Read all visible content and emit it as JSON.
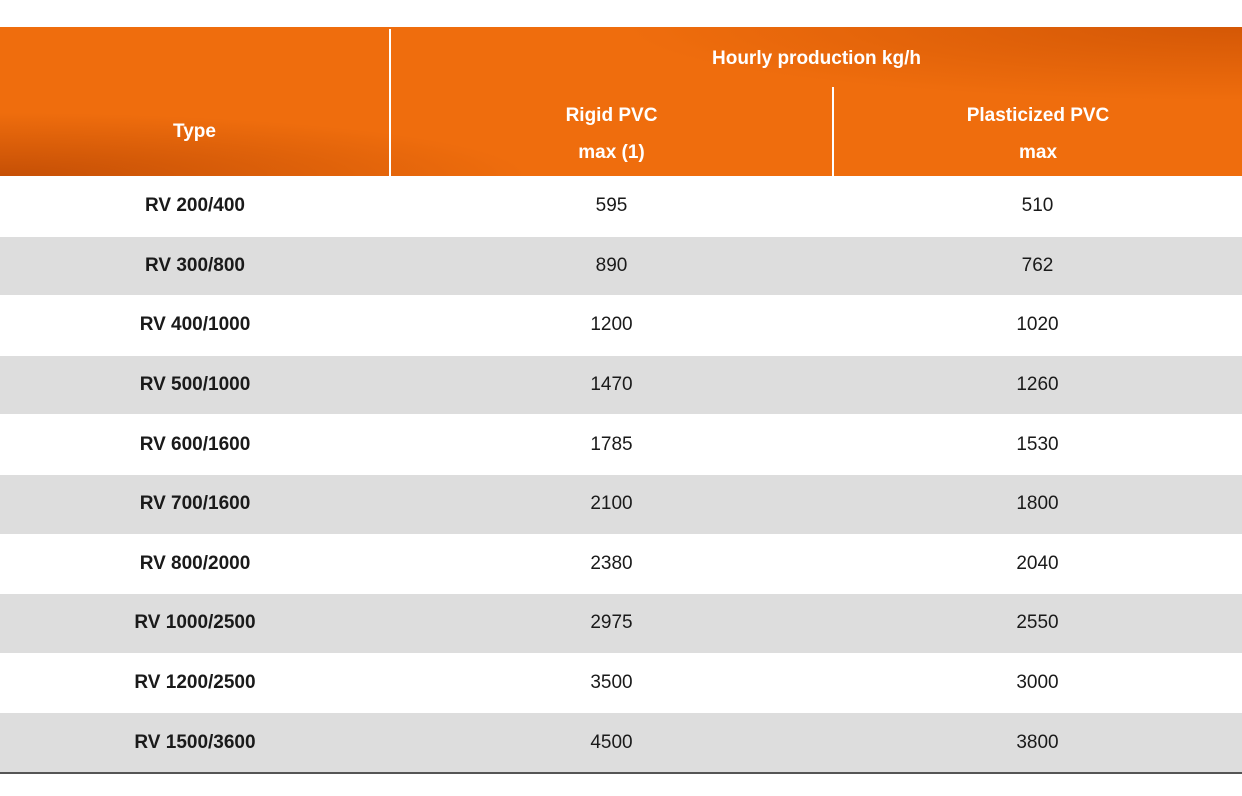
{
  "header": {
    "type_label": "Type",
    "group_label": "Hourly production kg/h",
    "col2_line1": "Rigid PVC",
    "col2_line2": "max (1)",
    "col3_line1": "Plasticized PVC",
    "col3_line2": "max"
  },
  "rows": [
    {
      "type": "RV 200/400",
      "rigid": "595",
      "plasticized": "510"
    },
    {
      "type": "RV 300/800",
      "rigid": "890",
      "plasticized": "762"
    },
    {
      "type": "RV 400/1000",
      "rigid": "1200",
      "plasticized": "1020"
    },
    {
      "type": "RV 500/1000",
      "rigid": "1470",
      "plasticized": "1260"
    },
    {
      "type": "RV 600/1600",
      "rigid": "1785",
      "plasticized": "1530"
    },
    {
      "type": "RV 700/1600",
      "rigid": "2100",
      "plasticized": "1800"
    },
    {
      "type": "RV 800/2000",
      "rigid": "2380",
      "plasticized": "2040"
    },
    {
      "type": "RV 1000/2500",
      "rigid": "2975",
      "plasticized": "2550"
    },
    {
      "type": "RV 1200/2500",
      "rigid": "3500",
      "plasticized": "3000"
    },
    {
      "type": "RV 1500/3600",
      "rigid": "4500",
      "plasticized": "3800"
    }
  ],
  "colors": {
    "header_orange": "#ef6d0d",
    "row_shade": "#dddddd"
  }
}
